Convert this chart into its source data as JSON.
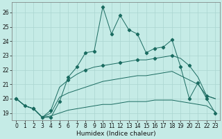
{
  "xlabel": "Humidex (Indice chaleur)",
  "bg_color": "#c5ebe6",
  "grid_color": "#aad5d0",
  "line_color": "#1a6b60",
  "xlim": [
    -0.5,
    23.5
  ],
  "ylim": [
    18.5,
    26.7
  ],
  "xticks": [
    0,
    1,
    2,
    3,
    4,
    5,
    6,
    7,
    8,
    9,
    10,
    11,
    12,
    13,
    14,
    15,
    16,
    17,
    18,
    19,
    20,
    21,
    22,
    23
  ],
  "yticks": [
    19,
    20,
    21,
    22,
    23,
    24,
    25,
    26
  ],
  "series1_x": [
    0,
    1,
    2,
    3,
    4,
    5,
    6,
    7,
    8,
    9,
    10,
    11,
    12,
    13,
    14,
    15,
    16,
    17,
    18,
    19,
    20,
    21,
    22,
    23
  ],
  "series1_y": [
    20.0,
    19.5,
    19.3,
    18.7,
    18.7,
    19.8,
    21.5,
    22.2,
    23.2,
    23.3,
    26.4,
    24.5,
    25.8,
    24.8,
    24.5,
    23.2,
    23.5,
    23.6,
    24.1,
    22.2,
    20.0,
    21.1,
    20.0,
    19.0
  ],
  "series2_x": [
    0,
    1,
    2,
    3,
    4,
    5,
    6,
    7,
    8,
    9,
    10,
    11,
    12,
    13,
    14,
    15,
    16,
    17,
    18,
    19,
    20,
    21,
    22,
    23
  ],
  "series2_y": [
    20.0,
    19.5,
    19.3,
    18.7,
    19.2,
    20.8,
    21.3,
    21.7,
    22.0,
    22.2,
    22.3,
    22.4,
    22.5,
    22.6,
    22.7,
    22.7,
    22.8,
    22.9,
    23.0,
    22.8,
    22.3,
    21.5,
    20.2,
    20.0
  ],
  "series3_x": [
    0,
    1,
    2,
    3,
    4,
    5,
    6,
    7,
    8,
    9,
    10,
    11,
    12,
    13,
    14,
    15,
    16,
    17,
    18,
    19,
    20,
    21,
    22,
    23
  ],
  "series3_y": [
    20.0,
    19.5,
    19.3,
    18.7,
    19.0,
    20.1,
    20.4,
    20.6,
    20.8,
    21.0,
    21.2,
    21.3,
    21.4,
    21.5,
    21.6,
    21.6,
    21.7,
    21.8,
    21.9,
    21.6,
    21.3,
    21.0,
    20.2,
    20.0
  ],
  "series4_x": [
    0,
    1,
    2,
    3,
    4,
    5,
    6,
    7,
    8,
    9,
    10,
    11,
    12,
    13,
    14,
    15,
    16,
    17,
    18,
    19,
    20,
    21,
    22,
    23
  ],
  "series4_y": [
    20.0,
    19.5,
    19.3,
    18.7,
    18.8,
    19.0,
    19.2,
    19.3,
    19.4,
    19.5,
    19.6,
    19.6,
    19.7,
    19.8,
    19.8,
    19.8,
    19.9,
    19.9,
    19.9,
    19.8,
    19.7,
    19.6,
    19.5,
    19.1
  ],
  "tick_fontsize": 5.5,
  "xlabel_fontsize": 6.5
}
